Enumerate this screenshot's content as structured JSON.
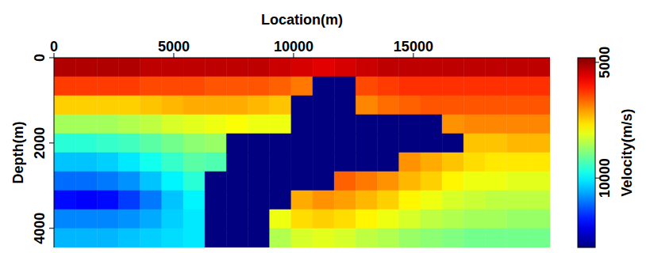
{
  "chart_data": {
    "type": "heatmap",
    "xlabel": "Location(m)",
    "ylabel": "Depth(m)",
    "xlim": [
      0,
      20700
    ],
    "ylim": [
      0,
      4450
    ],
    "xticks": [
      0,
      5000,
      10000,
      15000
    ],
    "yticks": [
      0,
      2000,
      4000
    ],
    "colorbar_label": "Velocity(m/s)",
    "colorbar_range": [
      4800,
      13000
    ],
    "colorbar_ticks": [
      5000,
      10000
    ],
    "cells": [
      [
        5200,
        5200,
        5200,
        5200,
        5300,
        5300,
        5300,
        5300,
        5300,
        5300,
        5400,
        5500,
        5600,
        5500,
        5400,
        5300,
        5300,
        5300,
        5300,
        5300,
        5300,
        5300,
        5300
      ],
      [
        6300,
        6300,
        6300,
        6300,
        6400,
        6400,
        6400,
        6500,
        6500,
        6500,
        6600,
        6800,
        13000,
        13000,
        6400,
        6300,
        6200,
        6200,
        6200,
        6200,
        6200,
        6200,
        6200
      ],
      [
        7500,
        7500,
        7500,
        7500,
        7400,
        7300,
        7200,
        7200,
        7200,
        7300,
        7400,
        13000,
        13000,
        13000,
        6900,
        6700,
        6600,
        6500,
        6500,
        6500,
        6500,
        6500,
        6500
      ],
      [
        8600,
        8600,
        8600,
        8500,
        8400,
        8200,
        8100,
        8000,
        7900,
        8000,
        8000,
        13000,
        13000,
        13000,
        13000,
        13000,
        13000,
        13000,
        7000,
        6900,
        6900,
        6900,
        6900
      ],
      [
        9600,
        9600,
        9500,
        9400,
        9200,
        9000,
        8800,
        8700,
        13000,
        13000,
        13000,
        13000,
        13000,
        13000,
        13000,
        13000,
        13000,
        13000,
        13000,
        7400,
        7400,
        7300,
        7300
      ],
      [
        10400,
        10400,
        10300,
        10100,
        9800,
        9500,
        9200,
        9300,
        13000,
        13000,
        13000,
        13000,
        13000,
        13000,
        13000,
        13000,
        7000,
        7200,
        7400,
        7600,
        7700,
        7700,
        7700
      ],
      [
        11100,
        11100,
        11000,
        10800,
        10400,
        10000,
        9600,
        13000,
        13000,
        13000,
        13000,
        13000,
        13000,
        6600,
        6800,
        7000,
        7300,
        7500,
        7800,
        8000,
        8000,
        8100,
        8100
      ],
      [
        11900,
        12000,
        11900,
        11500,
        11000,
        10400,
        10000,
        13000,
        13000,
        13000,
        13000,
        7200,
        7000,
        7100,
        7300,
        7500,
        7800,
        8000,
        8200,
        8300,
        8400,
        8400,
        8400
      ],
      [
        10900,
        10900,
        10900,
        10800,
        10600,
        10300,
        10100,
        13000,
        13000,
        13000,
        8000,
        7600,
        7500,
        7600,
        7800,
        8000,
        8200,
        8400,
        8500,
        8600,
        8600,
        8700,
        8700
      ],
      [
        10500,
        10500,
        10500,
        10400,
        10300,
        10200,
        10100,
        13000,
        13000,
        13000,
        8500,
        8200,
        8100,
        8200,
        8400,
        8500,
        8700,
        8800,
        8900,
        9000,
        9000,
        9000,
        9000
      ]
    ]
  }
}
